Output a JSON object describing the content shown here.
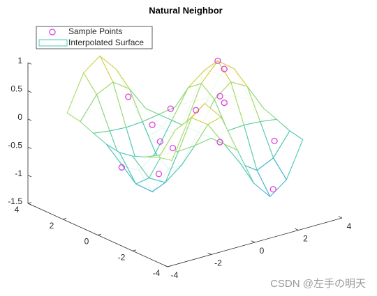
{
  "chart_data": {
    "type": "mesh3d",
    "title": "Natural Neighbor",
    "xlim": [
      -4,
      4
    ],
    "ylim": [
      -4,
      4
    ],
    "zlim": [
      -1.5,
      1
    ],
    "xticks": [
      -4,
      -2,
      0,
      2,
      4
    ],
    "yticks": [
      -4,
      -2,
      0,
      2,
      4
    ],
    "zticks": [
      -1.5,
      -1,
      -0.5,
      0,
      0.5,
      1
    ],
    "legend": "top-left",
    "colormap": [
      "#3a9fe2",
      "#4ccab4",
      "#a4dc68",
      "#f5c431"
    ],
    "series": [
      {
        "name": "Sample Points",
        "color": "#e23ee0",
        "x": [
          1.5,
          2.2,
          -2,
          0.5,
          -1,
          2.5,
          -2.5,
          0,
          1,
          -1.5,
          2.8,
          -0.5,
          1.8,
          -2.8,
          0.3
        ],
        "y": [
          0,
          0.5,
          -1,
          2.5,
          2,
          -2,
          0.5,
          -2,
          -1,
          -2.5,
          1.5,
          0.8,
          -2.8,
          -2.8,
          1.2
        ],
        "z": [
          1,
          0.71,
          -0.49,
          -0.38,
          0.35,
          -0.25,
          -0.53,
          0,
          0.45,
          0.8,
          0.02,
          -0.33,
          -0.92,
          0.31,
          0.11
        ]
      },
      {
        "name": "Interpolated Surface",
        "color": "#4ccab4",
        "x": [
          -3,
          -2.25,
          -1.5,
          -0.75,
          0,
          0.75,
          1.5,
          2.25,
          3
        ],
        "y": [
          -3,
          -2.25,
          -1.5,
          -0.75,
          0,
          0.75,
          1.5,
          2.25,
          3
        ],
        "z": [
          [
            0.14,
            0.77,
            0.99,
            0.67,
            0,
            -0.67,
            -0.99,
            -0.77,
            -0.14
          ],
          [
            0.09,
            0.49,
            0.63,
            0.43,
            0,
            -0.43,
            -0.63,
            -0.49,
            -0.09
          ],
          [
            -0.01,
            -0.05,
            -0.07,
            -0.05,
            0,
            0.05,
            0.07,
            0.05,
            0.01
          ],
          [
            -0.1,
            -0.57,
            -0.73,
            -0.5,
            0,
            0.5,
            0.73,
            0.57,
            0.1
          ],
          [
            -0.14,
            -0.78,
            -1,
            -0.68,
            0,
            0.68,
            1,
            0.78,
            0.14
          ],
          [
            -0.1,
            -0.57,
            -0.73,
            -0.5,
            0,
            0.5,
            0.73,
            0.57,
            0.1
          ],
          [
            -0.01,
            -0.05,
            -0.07,
            -0.05,
            0,
            0.05,
            0.07,
            0.05,
            0.01
          ],
          [
            0.09,
            0.49,
            0.63,
            0.43,
            0,
            -0.43,
            -0.63,
            -0.49,
            -0.09
          ],
          [
            0.14,
            0.77,
            0.99,
            0.67,
            0,
            -0.67,
            -0.99,
            -0.77,
            -0.14
          ]
        ]
      }
    ],
    "watermark": "CSDN @左手の明天"
  }
}
